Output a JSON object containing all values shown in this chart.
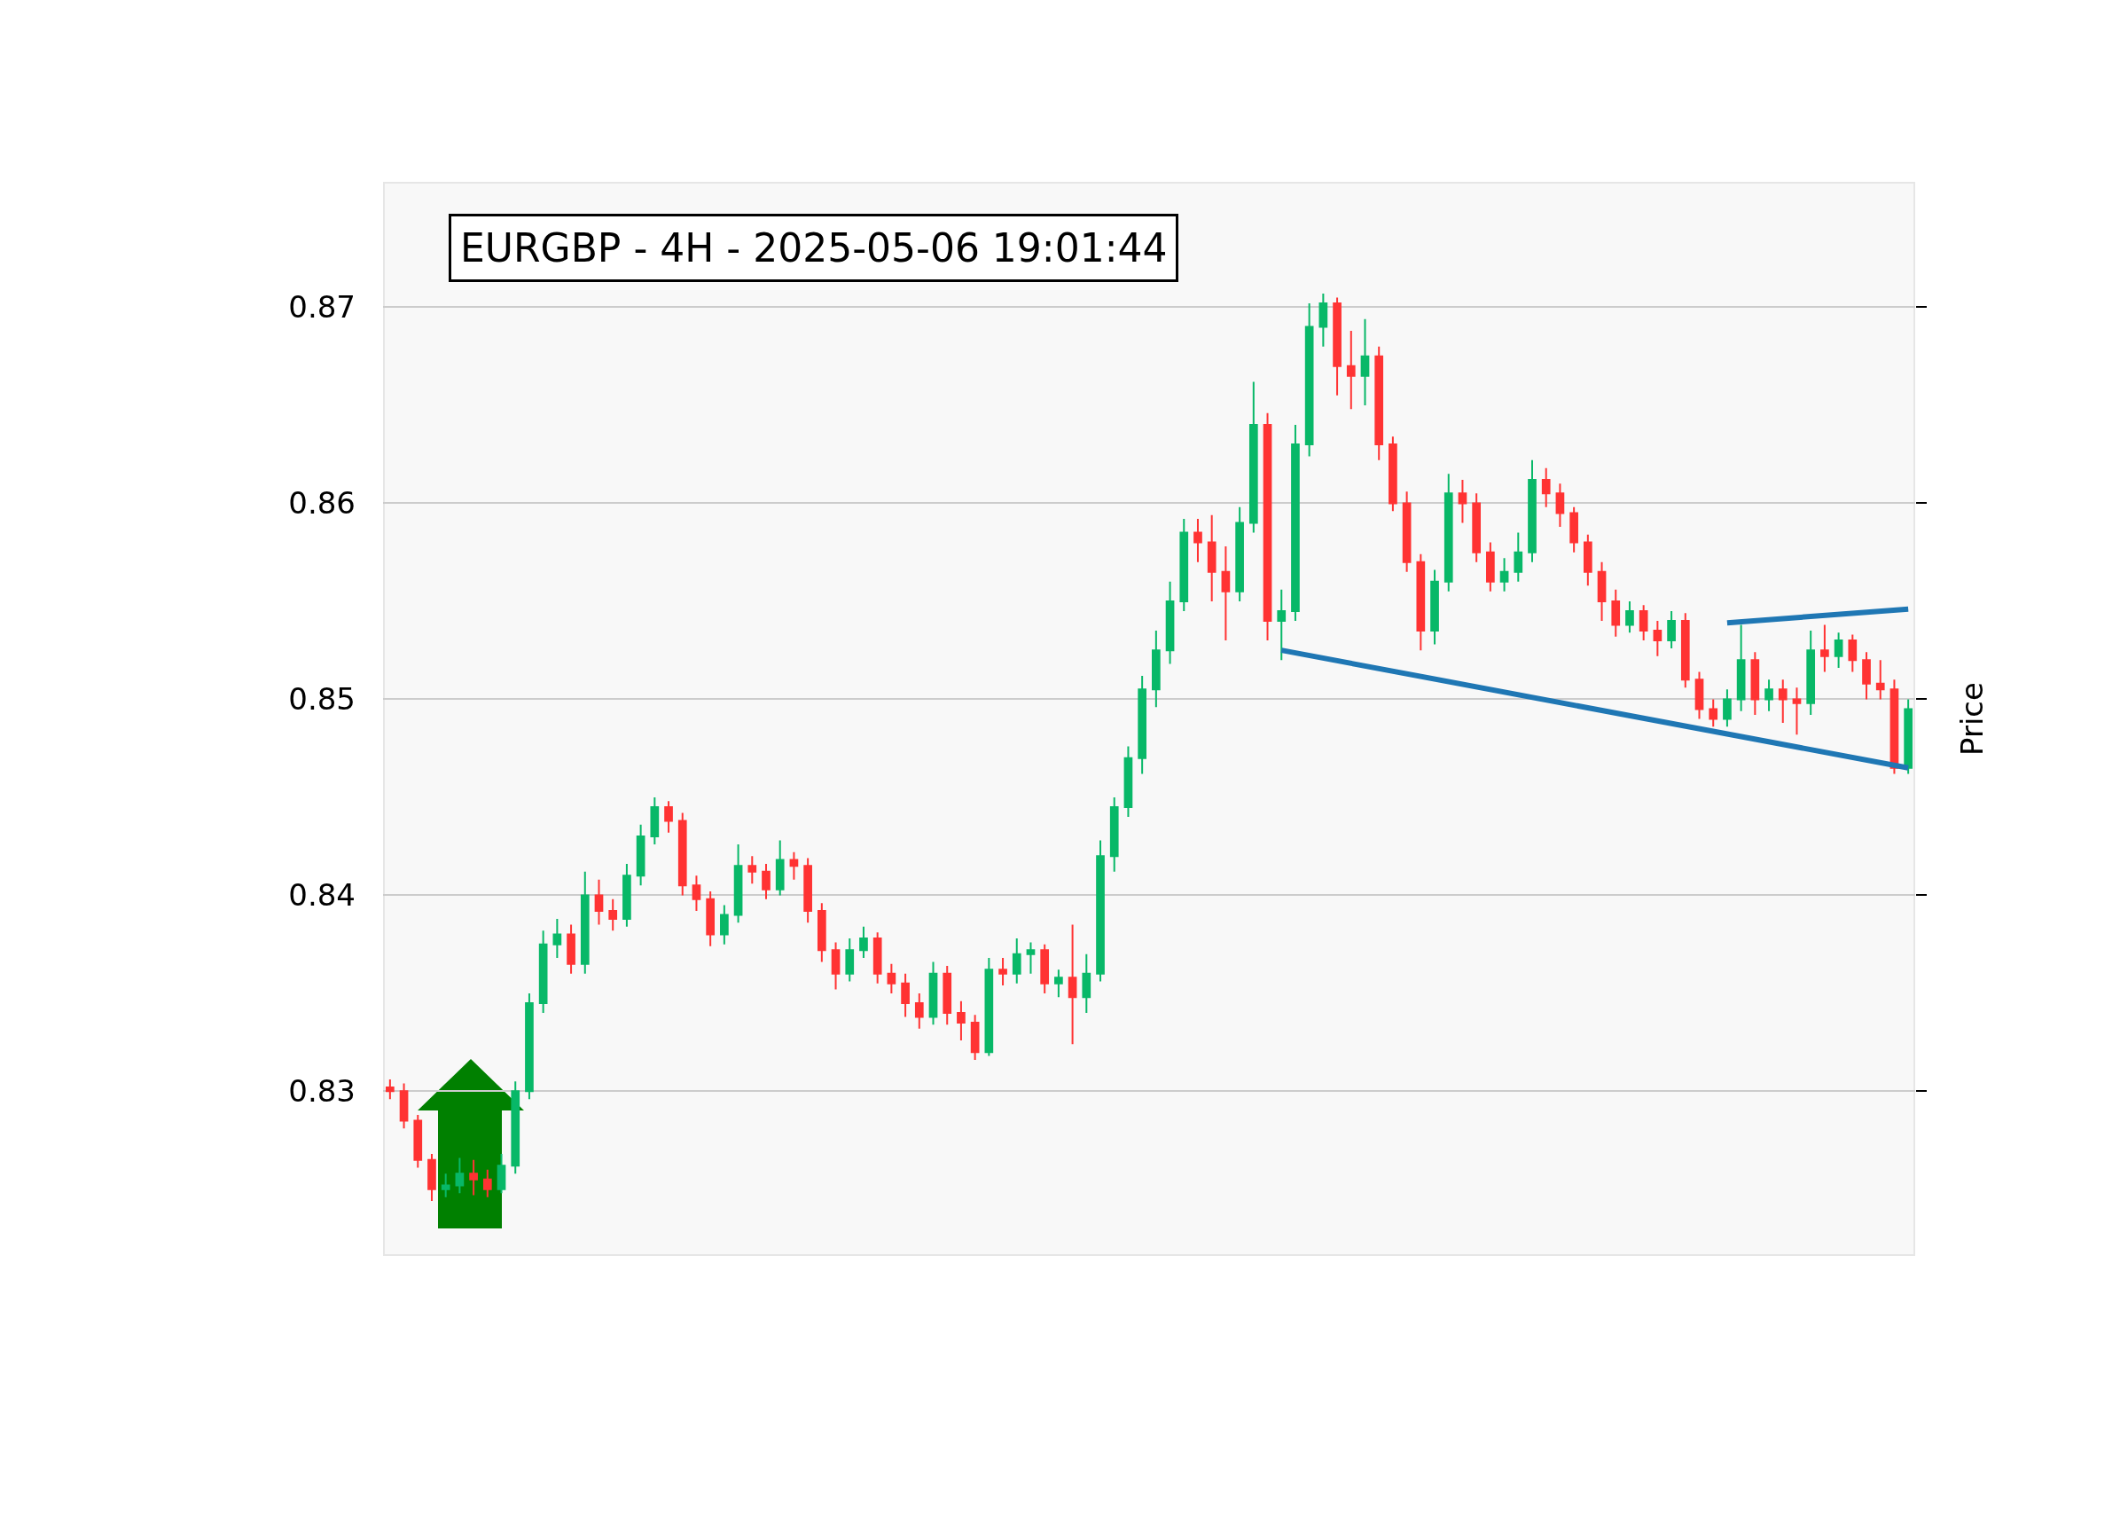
{
  "chart_data": {
    "type": "candlestick",
    "title": "EURGBP - 4H - 2025-05-06 19:01:44",
    "ylabel": "Price",
    "categories": [
      null,
      null,
      null,
      null,
      null,
      null,
      null,
      null,
      null,
      null,
      null,
      null,
      null,
      null,
      null,
      null,
      null,
      null,
      null,
      null,
      null,
      null,
      null,
      null,
      null,
      null,
      null,
      null,
      null,
      null,
      null,
      null,
      null,
      null,
      null,
      null,
      null,
      null,
      null,
      null,
      null,
      null,
      null,
      null,
      null,
      null,
      null,
      null,
      null,
      null,
      null,
      null,
      null,
      null,
      null,
      null,
      null,
      null,
      null,
      null,
      null,
      null,
      null,
      null,
      null,
      null,
      null,
      null,
      null,
      null,
      null,
      null,
      null,
      null,
      null,
      null,
      null,
      null,
      null,
      null,
      null,
      null,
      null,
      null,
      null,
      null,
      null,
      null,
      null,
      null,
      null,
      null,
      null,
      null,
      null,
      null,
      null,
      null,
      null,
      null,
      null,
      null,
      null,
      null,
      null,
      null,
      null,
      null,
      null,
      null
    ],
    "ohlc": [
      [
        0.8302,
        0.8306,
        0.8296,
        0.83
      ],
      [
        0.83,
        0.8304,
        0.8281,
        0.8285
      ],
      [
        0.8285,
        0.8288,
        0.8261,
        0.8265
      ],
      [
        0.8265,
        0.8268,
        0.8244,
        0.825
      ],
      [
        0.825,
        0.8258,
        0.8246,
        0.8252
      ],
      [
        0.8252,
        0.8266,
        0.8248,
        0.8258
      ],
      [
        0.8258,
        0.8265,
        0.8247,
        0.8255
      ],
      [
        0.8255,
        0.826,
        0.8246,
        0.825
      ],
      [
        0.825,
        0.8268,
        0.8248,
        0.8262
      ],
      [
        0.8262,
        0.8305,
        0.8258,
        0.83
      ],
      [
        0.83,
        0.835,
        0.8296,
        0.8345
      ],
      [
        0.8345,
        0.8382,
        0.834,
        0.8375
      ],
      [
        0.8375,
        0.8388,
        0.8368,
        0.838
      ],
      [
        0.838,
        0.8385,
        0.836,
        0.8365
      ],
      [
        0.8365,
        0.8412,
        0.836,
        0.84
      ],
      [
        0.84,
        0.8408,
        0.8385,
        0.8392
      ],
      [
        0.8392,
        0.8398,
        0.8382,
        0.8388
      ],
      [
        0.8388,
        0.8416,
        0.8384,
        0.841
      ],
      [
        0.841,
        0.8436,
        0.8405,
        0.843
      ],
      [
        0.843,
        0.845,
        0.8426,
        0.8445
      ],
      [
        0.8445,
        0.8448,
        0.8432,
        0.8438
      ],
      [
        0.8438,
        0.8442,
        0.84,
        0.8405
      ],
      [
        0.8405,
        0.841,
        0.8392,
        0.8398
      ],
      [
        0.8398,
        0.8402,
        0.8374,
        0.838
      ],
      [
        0.838,
        0.8395,
        0.8375,
        0.839
      ],
      [
        0.839,
        0.8426,
        0.8386,
        0.8415
      ],
      [
        0.8415,
        0.842,
        0.8406,
        0.8412
      ],
      [
        0.8412,
        0.8416,
        0.8398,
        0.8403
      ],
      [
        0.8403,
        0.8428,
        0.84,
        0.8418
      ],
      [
        0.8418,
        0.8422,
        0.8408,
        0.8415
      ],
      [
        0.8415,
        0.8419,
        0.8386,
        0.8392
      ],
      [
        0.8392,
        0.8396,
        0.8366,
        0.8372
      ],
      [
        0.8372,
        0.8376,
        0.8352,
        0.836
      ],
      [
        0.836,
        0.8378,
        0.8356,
        0.8372
      ],
      [
        0.8372,
        0.8384,
        0.8368,
        0.8378
      ],
      [
        0.8378,
        0.8381,
        0.8355,
        0.836
      ],
      [
        0.836,
        0.8365,
        0.835,
        0.8355
      ],
      [
        0.8355,
        0.836,
        0.8338,
        0.8345
      ],
      [
        0.8345,
        0.835,
        0.8332,
        0.8338
      ],
      [
        0.8338,
        0.8366,
        0.8334,
        0.836
      ],
      [
        0.836,
        0.8364,
        0.8334,
        0.834
      ],
      [
        0.834,
        0.8346,
        0.8326,
        0.8335
      ],
      [
        0.8335,
        0.8339,
        0.8316,
        0.832
      ],
      [
        0.832,
        0.8368,
        0.8318,
        0.8362
      ],
      [
        0.8362,
        0.8368,
        0.8354,
        0.836
      ],
      [
        0.836,
        0.8378,
        0.8355,
        0.837
      ],
      [
        0.837,
        0.8376,
        0.836,
        0.8372
      ],
      [
        0.8372,
        0.8375,
        0.835,
        0.8355
      ],
      [
        0.8355,
        0.8362,
        0.8348,
        0.8358
      ],
      [
        0.8358,
        0.8385,
        0.8324,
        0.8348
      ],
      [
        0.8348,
        0.837,
        0.834,
        0.836
      ],
      [
        0.836,
        0.8428,
        0.8356,
        0.842
      ],
      [
        0.842,
        0.845,
        0.8412,
        0.8445
      ],
      [
        0.8445,
        0.8476,
        0.844,
        0.847
      ],
      [
        0.847,
        0.8512,
        0.8462,
        0.8505
      ],
      [
        0.8505,
        0.8535,
        0.8496,
        0.8525
      ],
      [
        0.8525,
        0.856,
        0.8518,
        0.855
      ],
      [
        0.855,
        0.8592,
        0.8545,
        0.8585
      ],
      [
        0.8585,
        0.8592,
        0.857,
        0.858
      ],
      [
        0.858,
        0.8594,
        0.855,
        0.8565
      ],
      [
        0.8565,
        0.8578,
        0.853,
        0.8555
      ],
      [
        0.8555,
        0.8598,
        0.855,
        0.859
      ],
      [
        0.859,
        0.8662,
        0.8585,
        0.864
      ],
      [
        0.864,
        0.8646,
        0.853,
        0.854
      ],
      [
        0.854,
        0.8556,
        0.852,
        0.8545
      ],
      [
        0.8545,
        0.864,
        0.854,
        0.863
      ],
      [
        0.863,
        0.8702,
        0.8624,
        0.869
      ],
      [
        0.869,
        0.8707,
        0.868,
        0.8702
      ],
      [
        0.8702,
        0.8705,
        0.8655,
        0.867
      ],
      [
        0.867,
        0.8688,
        0.8648,
        0.8665
      ],
      [
        0.8665,
        0.8694,
        0.865,
        0.8675
      ],
      [
        0.8675,
        0.868,
        0.8622,
        0.863
      ],
      [
        0.863,
        0.8634,
        0.8596,
        0.86
      ],
      [
        0.86,
        0.8606,
        0.8565,
        0.857
      ],
      [
        0.857,
        0.8574,
        0.8525,
        0.8535
      ],
      [
        0.8535,
        0.8566,
        0.8528,
        0.856
      ],
      [
        0.856,
        0.8615,
        0.8555,
        0.8605
      ],
      [
        0.8605,
        0.8612,
        0.859,
        0.86
      ],
      [
        0.86,
        0.8605,
        0.857,
        0.8575
      ],
      [
        0.8575,
        0.858,
        0.8555,
        0.856
      ],
      [
        0.856,
        0.8572,
        0.8555,
        0.8565
      ],
      [
        0.8565,
        0.8585,
        0.856,
        0.8575
      ],
      [
        0.8575,
        0.8622,
        0.857,
        0.8612
      ],
      [
        0.8612,
        0.8618,
        0.8598,
        0.8605
      ],
      [
        0.8605,
        0.861,
        0.8588,
        0.8595
      ],
      [
        0.8595,
        0.8598,
        0.8575,
        0.858
      ],
      [
        0.858,
        0.8584,
        0.8558,
        0.8565
      ],
      [
        0.8565,
        0.857,
        0.854,
        0.855
      ],
      [
        0.855,
        0.8556,
        0.8532,
        0.8538
      ],
      [
        0.8538,
        0.855,
        0.8534,
        0.8545
      ],
      [
        0.8545,
        0.8548,
        0.853,
        0.8535
      ],
      [
        0.8535,
        0.854,
        0.8522,
        0.853
      ],
      [
        0.853,
        0.8545,
        0.8526,
        0.854
      ],
      [
        0.854,
        0.8544,
        0.8506,
        0.851
      ],
      [
        0.851,
        0.8514,
        0.849,
        0.8495
      ],
      [
        0.8495,
        0.85,
        0.8486,
        0.849
      ],
      [
        0.849,
        0.8505,
        0.8486,
        0.85
      ],
      [
        0.85,
        0.8538,
        0.8494,
        0.852
      ],
      [
        0.852,
        0.8524,
        0.8492,
        0.85
      ],
      [
        0.85,
        0.851,
        0.8494,
        0.8505
      ],
      [
        0.8505,
        0.851,
        0.8488,
        0.85
      ],
      [
        0.85,
        0.8506,
        0.8482,
        0.8498
      ],
      [
        0.8498,
        0.8535,
        0.8492,
        0.8525
      ],
      [
        0.8525,
        0.8538,
        0.8514,
        0.8522
      ],
      [
        0.8522,
        0.8534,
        0.8516,
        0.853
      ],
      [
        0.853,
        0.8533,
        0.8514,
        0.852
      ],
      [
        0.852,
        0.8524,
        0.85,
        0.8508
      ],
      [
        0.8508,
        0.852,
        0.85,
        0.8505
      ],
      [
        0.8505,
        0.851,
        0.8462,
        0.8465
      ],
      [
        0.8465,
        0.85,
        0.8462,
        0.8495
      ]
    ],
    "series": [
      {
        "type": "line",
        "color": "#1f77b4",
        "values": [
          null,
          null,
          null,
          null,
          null,
          null,
          null,
          null,
          null,
          null,
          null,
          null,
          null,
          null,
          null,
          null,
          null,
          null,
          null,
          null,
          null,
          null,
          null,
          null,
          null,
          null,
          null,
          null,
          null,
          null,
          null,
          null,
          null,
          null,
          null,
          null,
          null,
          null,
          null,
          null,
          null,
          null,
          null,
          null,
          null,
          null,
          null,
          null,
          null,
          null,
          null,
          null,
          null,
          null,
          null,
          null,
          null,
          null,
          null,
          null,
          null,
          null,
          null,
          null,
          0.8525,
          null,
          null,
          null,
          null,
          null,
          null,
          null,
          null,
          null,
          null,
          null,
          null,
          null,
          null,
          null,
          null,
          null,
          null,
          null,
          null,
          null,
          null,
          null,
          null,
          null,
          null,
          null,
          null,
          null,
          null,
          null,
          null,
          null,
          null,
          null,
          null,
          null,
          null,
          null,
          null,
          null,
          null,
          null,
          null,
          0.8465
        ]
      },
      {
        "type": "line",
        "color": "#1f77b4",
        "values": [
          null,
          null,
          null,
          null,
          null,
          null,
          null,
          null,
          null,
          null,
          null,
          null,
          null,
          null,
          null,
          null,
          null,
          null,
          null,
          null,
          null,
          null,
          null,
          null,
          null,
          null,
          null,
          null,
          null,
          null,
          null,
          null,
          null,
          null,
          null,
          null,
          null,
          null,
          null,
          null,
          null,
          null,
          null,
          null,
          null,
          null,
          null,
          null,
          null,
          null,
          null,
          null,
          null,
          null,
          null,
          null,
          null,
          null,
          null,
          null,
          null,
          null,
          null,
          null,
          null,
          null,
          null,
          null,
          null,
          null,
          null,
          null,
          null,
          null,
          null,
          null,
          null,
          null,
          null,
          null,
          null,
          null,
          null,
          null,
          null,
          null,
          null,
          null,
          null,
          null,
          null,
          null,
          null,
          null,
          null,
          null,
          0.8539,
          null,
          null,
          null,
          null,
          null,
          null,
          null,
          null,
          null,
          null,
          null,
          null,
          0.8546
        ]
      }
    ],
    "ylim": [
      0.8216,
      0.8764
    ],
    "yticks": [
      {
        "value": 0.83,
        "label": "0.83"
      },
      {
        "value": 0.84,
        "label": "0.84"
      },
      {
        "value": 0.85,
        "label": "0.85"
      },
      {
        "value": 0.86,
        "label": "0.86"
      },
      {
        "value": 0.87,
        "label": "0.87"
      }
    ],
    "grid": "y",
    "tick_labels": "y"
  }
}
